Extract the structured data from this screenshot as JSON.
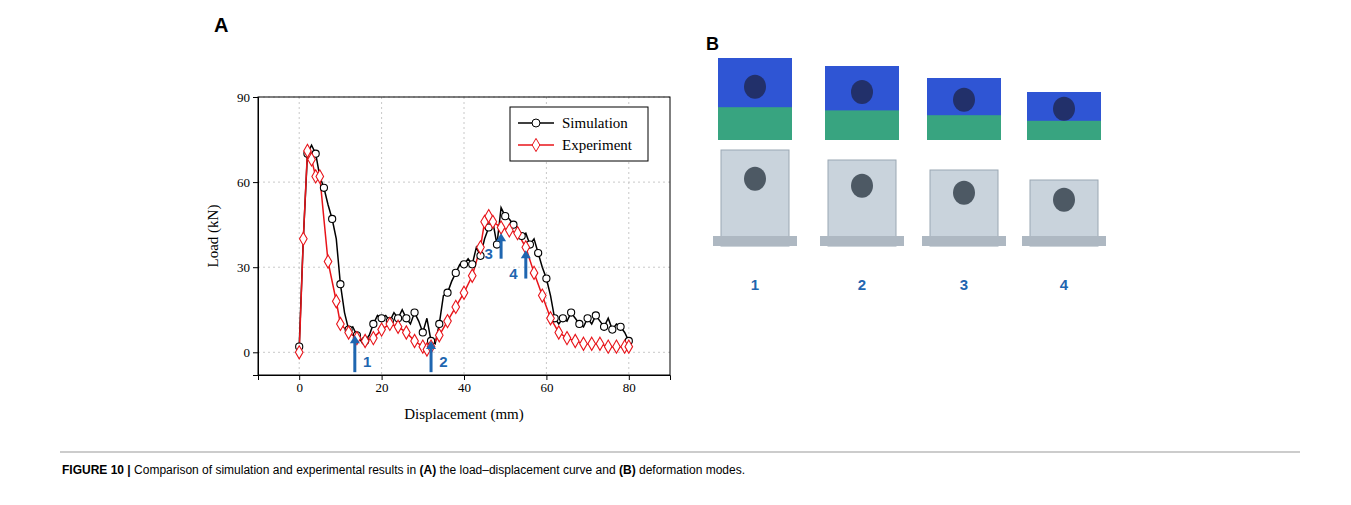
{
  "chart_data": {
    "type": "line",
    "panel": "A",
    "x_label": "Displacement (mm)",
    "y_label": "Load (kN)",
    "xlim": [
      -10,
      90
    ],
    "xticks": [
      0,
      20,
      40,
      60,
      80
    ],
    "ylim": [
      -8,
      90
    ],
    "yticks": [
      0,
      30,
      60,
      90
    ],
    "grid": true,
    "legend": "upper right",
    "series": [
      {
        "name": "Simulation",
        "color": "#000000",
        "marker": "circle",
        "line_style": "solid",
        "x": [
          0,
          1,
          2,
          3,
          4,
          5,
          6,
          7,
          8,
          9,
          10,
          11,
          12,
          13,
          14,
          15,
          16,
          17,
          18,
          19,
          20,
          21,
          22,
          23,
          24,
          25,
          26,
          27,
          28,
          29,
          30,
          31,
          32,
          33,
          34,
          35,
          36,
          37,
          38,
          39,
          40,
          41,
          42,
          43,
          44,
          45,
          46,
          47,
          48,
          49,
          50,
          51,
          52,
          53,
          54,
          55,
          56,
          57,
          58,
          59,
          60,
          61,
          62,
          63,
          64,
          65,
          66,
          67,
          68,
          69,
          70,
          71,
          72,
          73,
          74,
          75,
          76,
          77,
          78,
          79,
          80
        ],
        "values": [
          2,
          40,
          70,
          73,
          70,
          62,
          58,
          52,
          47,
          40,
          24,
          14,
          8,
          9,
          6,
          4,
          4,
          6,
          10,
          13,
          12,
          13,
          11,
          14,
          12,
          15,
          12,
          10,
          14,
          11,
          7,
          12,
          4,
          3,
          10,
          20,
          21,
          25,
          28,
          31,
          31,
          33,
          31,
          37,
          34,
          40,
          44,
          46,
          38,
          51,
          48,
          47,
          45,
          44,
          41,
          42,
          38,
          40,
          35,
          30,
          26,
          20,
          12,
          10,
          12,
          11,
          14,
          12,
          10,
          9,
          12,
          10,
          13,
          11,
          9,
          12,
          8,
          10,
          9,
          7,
          4
        ]
      },
      {
        "name": "Experiment",
        "color": "#e8141a",
        "marker": "diamond",
        "line_style": "solid",
        "x": [
          0,
          1,
          2,
          3,
          4,
          5,
          7,
          9,
          10,
          12,
          14,
          16,
          18,
          20,
          22,
          24,
          26,
          28,
          30,
          31,
          32,
          34,
          36,
          38,
          40,
          42,
          44,
          45,
          46,
          47,
          49,
          51,
          53,
          55,
          57,
          59,
          61,
          63,
          65,
          67,
          69,
          71,
          73,
          75,
          77,
          79,
          80
        ],
        "values": [
          0,
          40,
          71,
          68,
          62,
          62,
          32,
          18,
          10,
          7,
          5,
          4,
          5,
          8,
          10,
          9,
          7,
          4,
          2,
          1,
          2,
          6,
          11,
          16,
          21,
          27,
          37,
          46,
          48,
          46,
          44,
          43,
          42,
          37,
          28,
          20,
          12,
          7,
          5,
          4,
          3,
          3,
          3,
          2,
          2,
          2,
          2
        ]
      }
    ],
    "annotations": [
      {
        "text": "1",
        "x": 13.5,
        "y_from": -7,
        "y_to": 6,
        "label_x": 16.5,
        "label_y": -3
      },
      {
        "text": "2",
        "x": 32,
        "y_from": -7,
        "y_to": 4,
        "label_x": 35,
        "label_y": -3
      },
      {
        "text": "3",
        "x": 49,
        "y_from": 33,
        "y_to": 42,
        "label_x": 46,
        "label_y": 35
      },
      {
        "text": "4",
        "x": 55,
        "y_from": 26,
        "y_to": 36,
        "label_x": 52,
        "label_y": 28
      }
    ]
  },
  "panel_b": {
    "label": "B",
    "labels": [
      "1",
      "2",
      "3",
      "4"
    ]
  },
  "caption": [
    "FIGURE 10 | ",
    "Comparison of simulation and experimental results in ",
    "(A)",
    " the load–displacement curve and ",
    "(B)",
    " deformation modes."
  ]
}
